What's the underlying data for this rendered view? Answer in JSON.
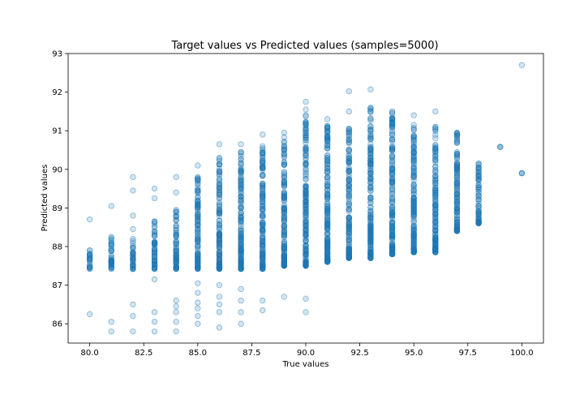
{
  "chart_data": {
    "type": "scatter",
    "title": "Target values vs Predicted values (samples=5000)",
    "xlabel": "True values",
    "ylabel": "Predicted values",
    "xlim": [
      79.0,
      101.0
    ],
    "ylim": [
      85.5,
      93.0
    ],
    "xticks": [
      "80.0",
      "82.5",
      "85.0",
      "87.5",
      "90.0",
      "92.5",
      "95.0",
      "97.5",
      "100.0"
    ],
    "xtick_values": [
      80.0,
      82.5,
      85.0,
      87.5,
      90.0,
      92.5,
      95.0,
      97.5,
      100.0
    ],
    "yticks": [
      "86",
      "87",
      "88",
      "89",
      "90",
      "91",
      "92",
      "93"
    ],
    "ytick_values": [
      86,
      87,
      88,
      89,
      90,
      91,
      92,
      93
    ],
    "grid": false,
    "marker_color": "#1f77b4",
    "marker_alpha": 0.2,
    "clusters": [
      {
        "x": 80,
        "main": [
          87.42,
          87.9
        ],
        "extra": [
          88.7,
          86.25
        ]
      },
      {
        "x": 81,
        "main": [
          87.42,
          88.25
        ],
        "extra": [
          89.05,
          86.05,
          85.8
        ]
      },
      {
        "x": 82,
        "main": [
          87.42,
          88.2
        ],
        "extra": [
          88.45,
          88.8,
          89.45,
          89.8,
          86.5,
          86.2,
          85.8
        ]
      },
      {
        "x": 83,
        "main": [
          87.42,
          88.65
        ],
        "extra": [
          89.25,
          89.5,
          87.15,
          86.3,
          86.05,
          85.8
        ]
      },
      {
        "x": 84,
        "main": [
          87.42,
          88.95
        ],
        "extra": [
          89.4,
          89.8,
          86.6,
          86.45,
          86.3,
          86.05,
          85.8
        ]
      },
      {
        "x": 85,
        "main": [
          87.42,
          89.8
        ],
        "extra": [
          90.1,
          87.05,
          86.8,
          86.55,
          86.4,
          86.2,
          86.0
        ]
      },
      {
        "x": 86,
        "main": [
          87.42,
          90.3
        ],
        "extra": [
          90.65,
          87.0,
          86.7,
          86.5,
          86.3,
          85.9
        ]
      },
      {
        "x": 87,
        "main": [
          87.42,
          90.45
        ],
        "extra": [
          90.65,
          86.9,
          86.6,
          86.3,
          86.0
        ]
      },
      {
        "x": 88,
        "main": [
          87.42,
          90.6
        ],
        "extra": [
          90.9,
          86.6,
          86.35
        ]
      },
      {
        "x": 89,
        "main": [
          87.5,
          90.95
        ],
        "extra": [
          86.7
        ]
      },
      {
        "x": 90,
        "main": [
          87.5,
          91.4
        ],
        "extra": [
          91.75,
          91.55,
          86.65,
          86.3
        ]
      },
      {
        "x": 91,
        "main": [
          87.6,
          91.3
        ],
        "extra": []
      },
      {
        "x": 92,
        "main": [
          87.7,
          91.05
        ],
        "extra": [
          91.5,
          92.02
        ]
      },
      {
        "x": 93,
        "main": [
          87.7,
          91.6
        ],
        "extra": [
          92.07
        ]
      },
      {
        "x": 94,
        "main": [
          87.8,
          91.5
        ],
        "extra": []
      },
      {
        "x": 95,
        "main": [
          87.85,
          91.15
        ],
        "extra": [
          91.4
        ]
      },
      {
        "x": 96,
        "main": [
          87.85,
          91.1
        ],
        "extra": [
          91.5
        ]
      },
      {
        "x": 97,
        "main": [
          88.4,
          90.95
        ],
        "extra": [
          89.1,
          88.45
        ]
      },
      {
        "x": 98,
        "main": [
          88.6,
          90.15
        ],
        "extra": [
          89.85
        ]
      },
      {
        "x": 99,
        "main": [
          90.58,
          90.58
        ],
        "extra": []
      },
      {
        "x": 100,
        "main": [
          89.9,
          89.9
        ],
        "extra": [
          92.7
        ]
      }
    ]
  }
}
